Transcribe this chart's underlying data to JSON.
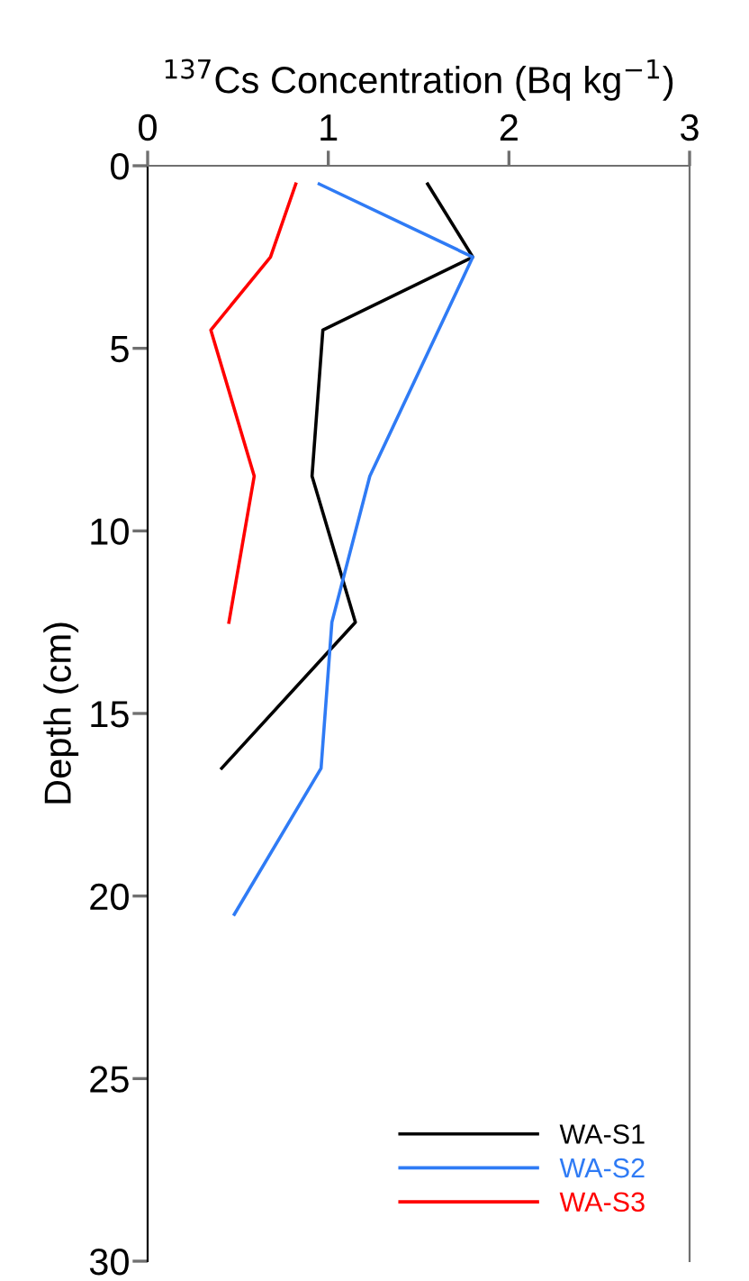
{
  "chart_data": {
    "type": "line",
    "xlabel": "$^{137}$Cs Concentration (Bq kg$^{−1}$)",
    "ylabel": "Depth (cm)",
    "xlim": [
      0,
      3
    ],
    "xticks": [
      0,
      1,
      2,
      3
    ],
    "ylim": [
      30,
      0
    ],
    "yticks": [
      0,
      5,
      10,
      15,
      20,
      25,
      30
    ],
    "legend": "bottom right",
    "grid": false,
    "marker": "none",
    "line_style": "solid",
    "series": [
      {
        "name": "WA-S1",
        "color": "#000000",
        "x": [
          1.55,
          1.8,
          0.97,
          0.91,
          1.15,
          0.41
        ],
        "values": [
          0.5,
          2.5,
          4.5,
          8.5,
          12.5,
          16.5
        ]
      },
      {
        "name": "WA-S2",
        "color": "#2f7bf5",
        "x": [
          0.95,
          1.8,
          1.23,
          1.02,
          0.96,
          0.48
        ],
        "values": [
          0.5,
          2.5,
          8.5,
          12.5,
          16.5,
          20.5
        ]
      },
      {
        "name": "WA-S3",
        "color": "#ff0000",
        "x": [
          0.82,
          0.68,
          0.35,
          0.59,
          0.45
        ],
        "values": [
          0.5,
          2.5,
          4.5,
          8.5,
          12.5
        ]
      }
    ]
  }
}
